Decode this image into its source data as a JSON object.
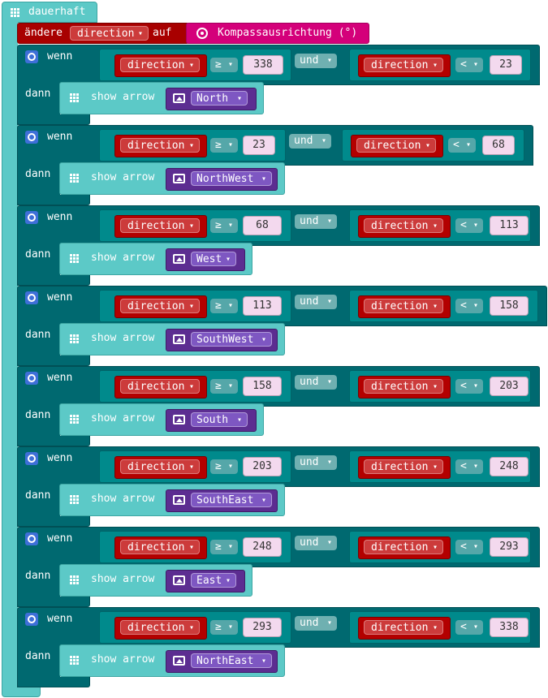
{
  "forever": {
    "label": "dauerhaft"
  },
  "set_block": {
    "label_change": "ändere",
    "variable": "direction",
    "label_to": "auf",
    "sensor": "Kompassausrichtung (°)"
  },
  "keywords": {
    "if": "wenn",
    "then": "dann",
    "and": "und",
    "show_arrow": "show arrow"
  },
  "dropdown_arrow": "▾",
  "rules": [
    {
      "low_op": "≥",
      "low": "338",
      "high_op": "<",
      "high": "23",
      "arrow": "North"
    },
    {
      "low_op": "≥",
      "low": "23",
      "high_op": "<",
      "high": "68",
      "arrow": "NorthWest"
    },
    {
      "low_op": "≥",
      "low": "68",
      "high_op": "<",
      "high": "113",
      "arrow": "West"
    },
    {
      "low_op": "≥",
      "low": "113",
      "high_op": "<",
      "high": "158",
      "arrow": "SouthWest"
    },
    {
      "low_op": "≥",
      "low": "158",
      "high_op": "<",
      "high": "203",
      "arrow": "South"
    },
    {
      "low_op": "≥",
      "low": "203",
      "high_op": "<",
      "high": "248",
      "arrow": "SouthEast"
    },
    {
      "low_op": "≥",
      "low": "248",
      "high_op": "<",
      "high": "293",
      "arrow": "East"
    },
    {
      "low_op": "≥",
      "low": "293",
      "high_op": "<",
      "high": "338",
      "arrow": "NorthEast"
    }
  ],
  "colors": {
    "loops": "#5cc9c7",
    "variables": "#a80000",
    "logic": "#006970",
    "input": "#d4007a",
    "images": "#5c2d91"
  }
}
